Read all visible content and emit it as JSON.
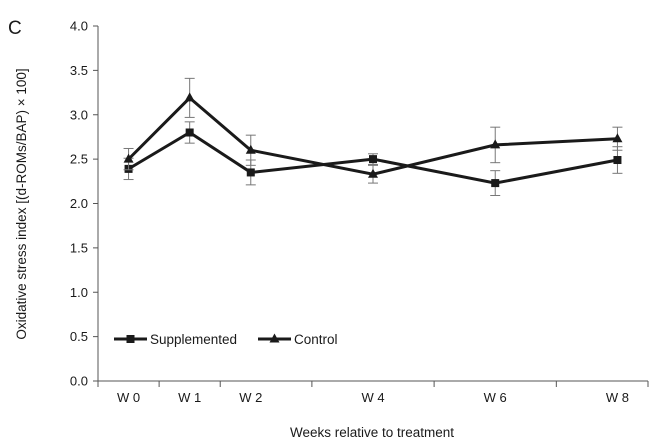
{
  "panel_label": "C",
  "chart_data": {
    "type": "line",
    "xlabel": "Weeks relative to treatment",
    "ylabel": "Oxidative stress index [(d-ROMs/BAP) × 100]",
    "x": [
      0,
      1,
      2,
      4,
      6,
      8
    ],
    "categories": [
      "W 0",
      "W 1",
      "W 2",
      "W 4",
      "W 6",
      "W 8"
    ],
    "xlim": [
      -0.5,
      8.5
    ],
    "ylim": [
      0,
      4.0
    ],
    "yticks": [
      "0.0",
      "0.5",
      "1.0",
      "1.5",
      "2.0",
      "2.5",
      "3.0",
      "3.5",
      "4.0"
    ],
    "grid": false,
    "legend_position": "bottom-left",
    "line_color": "#1a1a1a",
    "series": [
      {
        "name": "Supplemented",
        "marker": "square",
        "values": [
          2.39,
          2.8,
          2.35,
          2.5,
          2.23,
          2.49
        ],
        "error": [
          0.12,
          0.12,
          0.14,
          0.06,
          0.14,
          0.15
        ]
      },
      {
        "name": "Control",
        "marker": "triangle",
        "values": [
          2.5,
          3.19,
          2.6,
          2.33,
          2.66,
          2.73
        ],
        "error": [
          0.12,
          0.22,
          0.17,
          0.1,
          0.2,
          0.13
        ]
      }
    ]
  }
}
